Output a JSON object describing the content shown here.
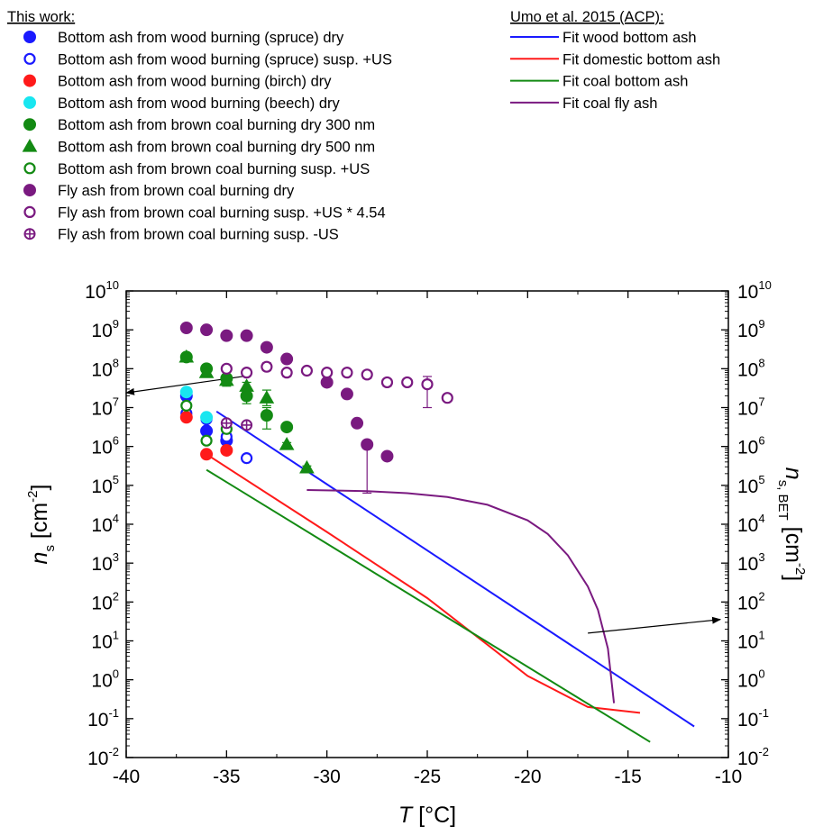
{
  "chart_data": {
    "type": "scatter",
    "xlabel": {
      "var": "T",
      "unit": " [°C]"
    },
    "ylabel_left": {
      "var": "n",
      "sub": "s",
      "unit_pre": " [cm",
      "unit_sup": "-2",
      "unit_post": "]"
    },
    "ylabel_right": {
      "var": "n",
      "sub": "s, BET",
      "unit_pre": " [cm",
      "unit_sup": "-2",
      "unit_post": "]"
    },
    "xlim": [
      -40,
      -10
    ],
    "ylim_log10": [
      -2,
      10
    ],
    "y_scale": "log",
    "x_ticks": [
      -40,
      -35,
      -30,
      -25,
      -20,
      -15,
      -10
    ],
    "y_tick_base": "10",
    "y_tick_exponents": [
      -2,
      -1,
      0,
      1,
      2,
      3,
      4,
      5,
      6,
      7,
      8,
      9,
      10
    ],
    "grid": false,
    "legend_left": {
      "title": "This work:",
      "entries": [
        {
          "name": "Bottom ash from wood burning (spruce) dry",
          "marker": "circle",
          "fill": true,
          "color": "#1a1aff"
        },
        {
          "name": "Bottom ash from wood burning (spruce) susp. +US",
          "marker": "circle",
          "fill": false,
          "color": "#1a1aff"
        },
        {
          "name": "Bottom ash from wood burning (birch) dry",
          "marker": "circle",
          "fill": true,
          "color": "#ff1a1a"
        },
        {
          "name": "Bottom ash from wood burning (beech) dry",
          "marker": "circle",
          "fill": true,
          "color": "#19e6f0"
        },
        {
          "name": "Bottom ash from brown coal burning dry 300 nm",
          "marker": "circle",
          "fill": true,
          "color": "#138a13"
        },
        {
          "name": "Bottom ash from brown coal burning dry 500 nm",
          "marker": "triangle",
          "fill": true,
          "color": "#138a13"
        },
        {
          "name": "Bottom ash from brown coal burning susp. +US",
          "marker": "circle",
          "fill": false,
          "color": "#138a13"
        },
        {
          "name": "Fly ash from brown coal burning dry",
          "marker": "circle",
          "fill": true,
          "color": "#7a1a80"
        },
        {
          "name": "Fly ash from brown coal burning susp. +US * 4.54",
          "marker": "circle",
          "fill": false,
          "color": "#7a1a80"
        },
        {
          "name": "Fly ash from brown coal burning susp. -US",
          "marker": "circleplus",
          "fill": false,
          "color": "#7a1a80"
        }
      ]
    },
    "legend_right": {
      "title": "Umo et al. 2015 (ACP):",
      "entries": [
        {
          "name": "Fit wood bottom ash",
          "color": "#1a1aff"
        },
        {
          "name": "Fit domestic bottom ash",
          "color": "#ff1a1a"
        },
        {
          "name": "Fit coal bottom ash",
          "color": "#138a13"
        },
        {
          "name": "Fit coal fly ash",
          "color": "#7a1a80"
        }
      ]
    },
    "series": [
      {
        "legend": 0,
        "points": [
          [
            -37,
            7.3
          ],
          [
            -36,
            6.4
          ],
          [
            -35,
            6.15
          ]
        ]
      },
      {
        "legend": 1,
        "points": [
          [
            -37,
            6.85
          ],
          [
            -36,
            6.7
          ],
          [
            -35,
            6.25
          ],
          [
            -34,
            5.7
          ]
        ]
      },
      {
        "legend": 2,
        "points": [
          [
            -37,
            6.75
          ],
          [
            -36,
            5.8
          ],
          [
            -35,
            5.9
          ]
        ]
      },
      {
        "legend": 3,
        "points": [
          [
            -37,
            7.4
          ],
          [
            -36,
            6.75
          ]
        ]
      },
      {
        "legend": 4,
        "points": [
          [
            -37,
            8.3
          ],
          [
            -36,
            8.0
          ],
          [
            -35,
            7.75
          ],
          [
            -34,
            7.3
          ],
          [
            -33,
            6.8
          ],
          [
            -32,
            6.5
          ]
        ],
        "yerr_low": [
          0.05,
          0.15,
          0.2,
          0.2,
          0.35,
          0.1
        ],
        "yerr_high": [
          0.05,
          0.1,
          0.1,
          0.1,
          0.2,
          0.05
        ]
      },
      {
        "legend": 5,
        "points": [
          [
            -37,
            8.3
          ],
          [
            -36,
            7.9
          ],
          [
            -35,
            7.7
          ],
          [
            -34,
            7.55
          ],
          [
            -33,
            7.25
          ],
          [
            -32,
            6.05
          ],
          [
            -31,
            5.45
          ]
        ],
        "yerr_low": [
          0.05,
          0.1,
          0.1,
          0.1,
          0.2,
          0.1,
          0.05
        ],
        "yerr_high": [
          0.05,
          0.1,
          0.1,
          0.1,
          0.2,
          0.05,
          0.05
        ]
      },
      {
        "legend": 6,
        "points": [
          [
            -37,
            7.05
          ],
          [
            -36,
            6.15
          ],
          [
            -35,
            6.45
          ]
        ]
      },
      {
        "legend": 7,
        "points": [
          [
            -37,
            9.05
          ],
          [
            -36,
            9.0
          ],
          [
            -35,
            8.85
          ],
          [
            -34,
            8.85
          ],
          [
            -33,
            8.55
          ],
          [
            -32,
            8.25
          ],
          [
            -30,
            7.65
          ],
          [
            -29,
            7.35
          ],
          [
            -28.5,
            6.6
          ],
          [
            -28,
            6.05
          ],
          [
            -27,
            5.75
          ]
        ],
        "yerr_low": [
          0.05,
          0.05,
          0.05,
          0.05,
          0.05,
          0.05,
          0.1,
          0.05,
          0.05,
          1.25,
          0.05
        ],
        "yerr_high": [
          0.05,
          0.05,
          0.05,
          0.05,
          0.05,
          0.05,
          0.05,
          0.05,
          0.05,
          0.05,
          0.05
        ]
      },
      {
        "legend": 8,
        "points": [
          [
            -35,
            8.0
          ],
          [
            -34,
            7.9
          ],
          [
            -33,
            8.05
          ],
          [
            -32,
            7.9
          ],
          [
            -31,
            7.95
          ],
          [
            -30,
            7.9
          ],
          [
            -29,
            7.9
          ],
          [
            -28,
            7.85
          ],
          [
            -27,
            7.65
          ],
          [
            -26,
            7.65
          ],
          [
            -25,
            7.6
          ],
          [
            -24,
            7.25
          ]
        ],
        "yerr_low": [
          0.05,
          0.05,
          0.1,
          0.1,
          0.05,
          0.05,
          0.05,
          0.1,
          0.1,
          0.05,
          0.6,
          0.05
        ],
        "yerr_high": [
          0.05,
          0.05,
          0.1,
          0.05,
          0.05,
          0.05,
          0.05,
          0.05,
          0.05,
          0.05,
          0.2,
          0.05
        ]
      },
      {
        "legend": 9,
        "points": [
          [
            -35,
            6.6
          ],
          [
            -34,
            6.55
          ]
        ]
      }
    ],
    "fits": [
      {
        "legend": 0,
        "x": [
          -35.5,
          -11.7
        ],
        "y_log": [
          6.9,
          -1.2
        ]
      },
      {
        "legend": 1,
        "x": [
          -36,
          -30,
          -25,
          -22,
          -20,
          -17,
          -14.4
        ],
        "y_log": [
          5.8,
          3.8,
          2.1,
          0.9,
          0.1,
          -0.7,
          -0.85
        ]
      },
      {
        "legend": 2,
        "x": [
          -36,
          -13.9
        ],
        "y_log": [
          5.4,
          -1.6
        ]
      },
      {
        "legend": 3,
        "x": [
          -31,
          -28,
          -26,
          -24,
          -22,
          -20,
          -19,
          -18,
          -17,
          -16.5,
          -16,
          -15.7
        ],
        "y_log": [
          4.88,
          4.85,
          4.8,
          4.7,
          4.5,
          4.1,
          3.75,
          3.2,
          2.4,
          1.8,
          0.8,
          -0.6
        ]
      }
    ],
    "annotations": [
      {
        "type": "arrow",
        "target": "left axis",
        "from_x": -34.2,
        "from_y_log": 7.8,
        "to_x": -40,
        "to_y_log": 7.38
      },
      {
        "type": "arrow",
        "target": "right axis",
        "from_x": -17,
        "from_y_log": 1.2,
        "to_x": -10.4,
        "to_y_log": 1.55
      }
    ]
  }
}
